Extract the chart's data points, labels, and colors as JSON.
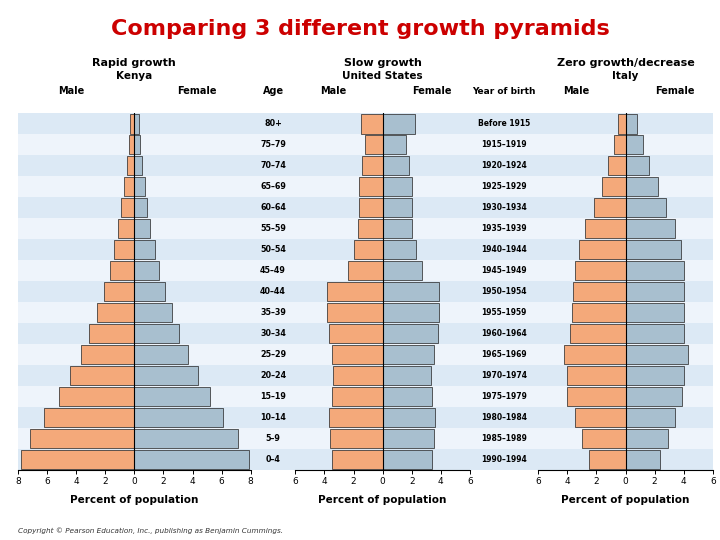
{
  "title": "Comparing 3 different growth pyramids",
  "title_color": "#cc0000",
  "title_fontsize": 16,
  "background_color": "#ffffff",
  "stripe_color1": "#dce9f5",
  "stripe_color2": "#eef4fb",
  "male_color": "#f4a97a",
  "female_color": "#a8bfcf",
  "bar_edgecolor": "#222222",
  "copyright": "Copyright © Pearson Education, Inc., publishing as Benjamin Cummings.",
  "age_labels": [
    "0–4",
    "5–9",
    "10–14",
    "15–19",
    "20–24",
    "25–29",
    "30–34",
    "35–39",
    "40–44",
    "45–49",
    "50–54",
    "55–59",
    "60–64",
    "65–69",
    "70–74",
    "75–79",
    "80+"
  ],
  "year_labels": [
    "1990–1994",
    "1985–1989",
    "1980–1984",
    "1975–1979",
    "1970–1974",
    "1965–1969",
    "1960–1964",
    "1955–1959",
    "1950–1954",
    "1945–1949",
    "1940–1944",
    "1935–1939",
    "1930–1934",
    "1925–1929",
    "1920–1924",
    "1915–1919",
    "Before 1915"
  ],
  "kenya_male": [
    7.8,
    7.2,
    6.2,
    5.2,
    4.4,
    3.7,
    3.1,
    2.6,
    2.1,
    1.7,
    1.4,
    1.1,
    0.9,
    0.7,
    0.5,
    0.4,
    0.3
  ],
  "kenya_female": [
    7.9,
    7.1,
    6.1,
    5.2,
    4.4,
    3.7,
    3.1,
    2.6,
    2.1,
    1.7,
    1.4,
    1.1,
    0.9,
    0.7,
    0.5,
    0.4,
    0.3
  ],
  "us_male": [
    3.5,
    3.6,
    3.7,
    3.5,
    3.4,
    3.5,
    3.7,
    3.8,
    3.8,
    2.4,
    2.0,
    1.7,
    1.6,
    1.6,
    1.4,
    1.2,
    1.5
  ],
  "us_female": [
    3.4,
    3.5,
    3.6,
    3.4,
    3.3,
    3.5,
    3.8,
    3.9,
    3.9,
    2.7,
    2.3,
    2.0,
    2.0,
    2.0,
    1.8,
    1.6,
    2.2
  ],
  "italy_male": [
    2.5,
    3.0,
    3.5,
    4.0,
    4.0,
    4.2,
    3.8,
    3.7,
    3.6,
    3.5,
    3.2,
    2.8,
    2.2,
    1.6,
    1.2,
    0.8,
    0.5
  ],
  "italy_female": [
    2.4,
    2.9,
    3.4,
    3.9,
    4.0,
    4.3,
    4.0,
    4.0,
    4.0,
    4.0,
    3.8,
    3.4,
    2.8,
    2.2,
    1.6,
    1.2,
    0.8
  ],
  "pyramid1_title1": "Rapid growth",
  "pyramid1_title2": "Kenya",
  "pyramid2_title1": "Slow growth",
  "pyramid2_title2": "United States",
  "pyramid3_title1": "Zero growth/decrease",
  "pyramid3_title2": "Italy",
  "xlim1": 8,
  "xlim2": 6,
  "xlim3": 6,
  "xlabel": "Percent of population"
}
